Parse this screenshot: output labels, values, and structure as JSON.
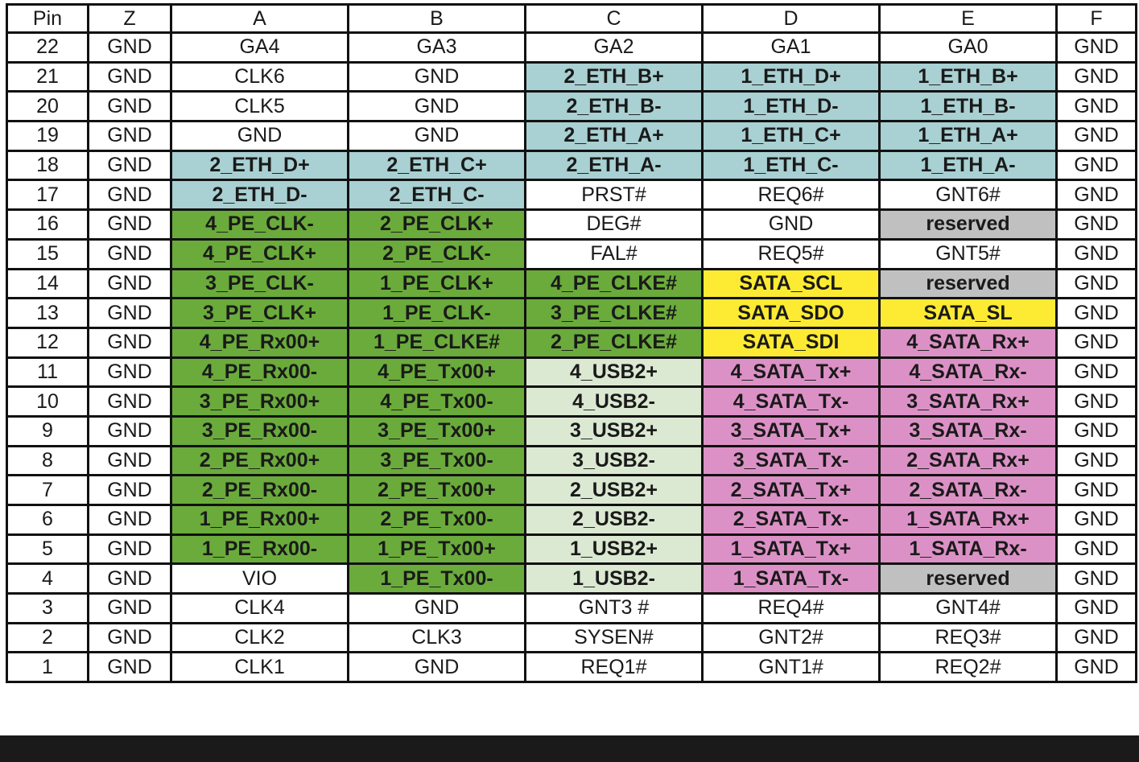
{
  "table": {
    "header": [
      "Pin",
      "Z",
      "A",
      "B",
      "C",
      "D",
      "E",
      "F"
    ],
    "colors": {
      "white": "#ffffff",
      "blue": "#a9d0d2",
      "green": "#6aab3b",
      "lightgreen": "#dbe8d2",
      "yellow": "#fdeb33",
      "pink": "#dc91c6",
      "gray": "#c0c0c0"
    },
    "rows": [
      [
        {
          "t": "22"
        },
        {
          "t": "GND"
        },
        {
          "t": "GA4"
        },
        {
          "t": "GA3"
        },
        {
          "t": "GA2"
        },
        {
          "t": "GA1"
        },
        {
          "t": "GA0"
        },
        {
          "t": "GND"
        }
      ],
      [
        {
          "t": "21"
        },
        {
          "t": "GND"
        },
        {
          "t": "CLK6"
        },
        {
          "t": "GND"
        },
        {
          "t": "2_ETH_B+",
          "c": "blue",
          "b": 1
        },
        {
          "t": "1_ETH_D+",
          "c": "blue",
          "b": 1
        },
        {
          "t": "1_ETH_B+",
          "c": "blue",
          "b": 1
        },
        {
          "t": "GND"
        }
      ],
      [
        {
          "t": "20"
        },
        {
          "t": "GND"
        },
        {
          "t": "CLK5"
        },
        {
          "t": "GND"
        },
        {
          "t": "2_ETH_B-",
          "c": "blue",
          "b": 1
        },
        {
          "t": "1_ETH_D-",
          "c": "blue",
          "b": 1
        },
        {
          "t": "1_ETH_B-",
          "c": "blue",
          "b": 1
        },
        {
          "t": "GND"
        }
      ],
      [
        {
          "t": "19"
        },
        {
          "t": "GND"
        },
        {
          "t": "GND"
        },
        {
          "t": "GND"
        },
        {
          "t": "2_ETH_A+",
          "c": "blue",
          "b": 1
        },
        {
          "t": "1_ETH_C+",
          "c": "blue",
          "b": 1
        },
        {
          "t": "1_ETH_A+",
          "c": "blue",
          "b": 1
        },
        {
          "t": "GND"
        }
      ],
      [
        {
          "t": "18"
        },
        {
          "t": "GND"
        },
        {
          "t": "2_ETH_D+",
          "c": "blue",
          "b": 1
        },
        {
          "t": "2_ETH_C+",
          "c": "blue",
          "b": 1
        },
        {
          "t": "2_ETH_A-",
          "c": "blue",
          "b": 1
        },
        {
          "t": "1_ETH_C-",
          "c": "blue",
          "b": 1
        },
        {
          "t": "1_ETH_A-",
          "c": "blue",
          "b": 1
        },
        {
          "t": "GND"
        }
      ],
      [
        {
          "t": "17"
        },
        {
          "t": "GND"
        },
        {
          "t": "2_ETH_D-",
          "c": "blue",
          "b": 1
        },
        {
          "t": "2_ETH_C-",
          "c": "blue",
          "b": 1
        },
        {
          "t": "PRST#"
        },
        {
          "t": "REQ6#"
        },
        {
          "t": "GNT6#"
        },
        {
          "t": "GND"
        }
      ],
      [
        {
          "t": "16"
        },
        {
          "t": "GND"
        },
        {
          "t": "4_PE_CLK-",
          "c": "green",
          "b": 1
        },
        {
          "t": "2_PE_CLK+",
          "c": "green",
          "b": 1
        },
        {
          "t": "DEG#"
        },
        {
          "t": "GND"
        },
        {
          "t": "reserved",
          "c": "gray",
          "b": 1
        },
        {
          "t": "GND"
        }
      ],
      [
        {
          "t": "15"
        },
        {
          "t": "GND"
        },
        {
          "t": "4_PE_CLK+",
          "c": "green",
          "b": 1
        },
        {
          "t": "2_PE_CLK-",
          "c": "green",
          "b": 1
        },
        {
          "t": "FAL#"
        },
        {
          "t": "REQ5#"
        },
        {
          "t": "GNT5#"
        },
        {
          "t": "GND"
        }
      ],
      [
        {
          "t": "14"
        },
        {
          "t": "GND"
        },
        {
          "t": "3_PE_CLK-",
          "c": "green",
          "b": 1
        },
        {
          "t": "1_PE_CLK+",
          "c": "green",
          "b": 1
        },
        {
          "t": "4_PE_CLKE#",
          "c": "green",
          "b": 1
        },
        {
          "t": "SATA_SCL",
          "c": "yellow",
          "b": 1
        },
        {
          "t": "reserved",
          "c": "gray",
          "b": 1
        },
        {
          "t": "GND"
        }
      ],
      [
        {
          "t": "13"
        },
        {
          "t": "GND"
        },
        {
          "t": "3_PE_CLK+",
          "c": "green",
          "b": 1
        },
        {
          "t": "1_PE_CLK-",
          "c": "green",
          "b": 1
        },
        {
          "t": "3_PE_CLKE#",
          "c": "green",
          "b": 1
        },
        {
          "t": "SATA_SDO",
          "c": "yellow",
          "b": 1
        },
        {
          "t": "SATA_SL",
          "c": "yellow",
          "b": 1
        },
        {
          "t": "GND"
        }
      ],
      [
        {
          "t": "12"
        },
        {
          "t": "GND"
        },
        {
          "t": "4_PE_Rx00+",
          "c": "green",
          "b": 1
        },
        {
          "t": "1_PE_CLKE#",
          "c": "green",
          "b": 1
        },
        {
          "t": "2_PE_CLKE#",
          "c": "green",
          "b": 1
        },
        {
          "t": "SATA_SDI",
          "c": "yellow",
          "b": 1
        },
        {
          "t": "4_SATA_Rx+",
          "c": "pink",
          "b": 1
        },
        {
          "t": "GND"
        }
      ],
      [
        {
          "t": "11"
        },
        {
          "t": "GND"
        },
        {
          "t": "4_PE_Rx00-",
          "c": "green",
          "b": 1
        },
        {
          "t": "4_PE_Tx00+",
          "c": "green",
          "b": 1
        },
        {
          "t": "4_USB2+",
          "c": "lightgreen",
          "b": 1
        },
        {
          "t": "4_SATA_Tx+",
          "c": "pink",
          "b": 1
        },
        {
          "t": "4_SATA_Rx-",
          "c": "pink",
          "b": 1
        },
        {
          "t": "GND"
        }
      ],
      [
        {
          "t": "10"
        },
        {
          "t": "GND"
        },
        {
          "t": "3_PE_Rx00+",
          "c": "green",
          "b": 1
        },
        {
          "t": "4_PE_Tx00-",
          "c": "green",
          "b": 1
        },
        {
          "t": "4_USB2-",
          "c": "lightgreen",
          "b": 1
        },
        {
          "t": "4_SATA_Tx-",
          "c": "pink",
          "b": 1
        },
        {
          "t": "3_SATA_Rx+",
          "c": "pink",
          "b": 1
        },
        {
          "t": "GND"
        }
      ],
      [
        {
          "t": "9"
        },
        {
          "t": "GND"
        },
        {
          "t": "3_PE_Rx00-",
          "c": "green",
          "b": 1
        },
        {
          "t": "3_PE_Tx00+",
          "c": "green",
          "b": 1
        },
        {
          "t": "3_USB2+",
          "c": "lightgreen",
          "b": 1
        },
        {
          "t": "3_SATA_Tx+",
          "c": "pink",
          "b": 1
        },
        {
          "t": "3_SATA_Rx-",
          "c": "pink",
          "b": 1
        },
        {
          "t": "GND"
        }
      ],
      [
        {
          "t": "8"
        },
        {
          "t": "GND"
        },
        {
          "t": "2_PE_Rx00+",
          "c": "green",
          "b": 1
        },
        {
          "t": "3_PE_Tx00-",
          "c": "green",
          "b": 1
        },
        {
          "t": "3_USB2-",
          "c": "lightgreen",
          "b": 1
        },
        {
          "t": "3_SATA_Tx-",
          "c": "pink",
          "b": 1
        },
        {
          "t": "2_SATA_Rx+",
          "c": "pink",
          "b": 1
        },
        {
          "t": "GND"
        }
      ],
      [
        {
          "t": "7"
        },
        {
          "t": "GND"
        },
        {
          "t": "2_PE_Rx00-",
          "c": "green",
          "b": 1
        },
        {
          "t": "2_PE_Tx00+",
          "c": "green",
          "b": 1
        },
        {
          "t": "2_USB2+",
          "c": "lightgreen",
          "b": 1
        },
        {
          "t": "2_SATA_Tx+",
          "c": "pink",
          "b": 1
        },
        {
          "t": "2_SATA_Rx-",
          "c": "pink",
          "b": 1
        },
        {
          "t": "GND"
        }
      ],
      [
        {
          "t": "6"
        },
        {
          "t": "GND"
        },
        {
          "t": "1_PE_Rx00+",
          "c": "green",
          "b": 1
        },
        {
          "t": "2_PE_Tx00-",
          "c": "green",
          "b": 1
        },
        {
          "t": "2_USB2-",
          "c": "lightgreen",
          "b": 1
        },
        {
          "t": "2_SATA_Tx-",
          "c": "pink",
          "b": 1
        },
        {
          "t": "1_SATA_Rx+",
          "c": "pink",
          "b": 1
        },
        {
          "t": "GND"
        }
      ],
      [
        {
          "t": "5"
        },
        {
          "t": "GND"
        },
        {
          "t": "1_PE_Rx00-",
          "c": "green",
          "b": 1
        },
        {
          "t": "1_PE_Tx00+",
          "c": "green",
          "b": 1
        },
        {
          "t": "1_USB2+",
          "c": "lightgreen",
          "b": 1
        },
        {
          "t": "1_SATA_Tx+",
          "c": "pink",
          "b": 1
        },
        {
          "t": "1_SATA_Rx-",
          "c": "pink",
          "b": 1
        },
        {
          "t": "GND"
        }
      ],
      [
        {
          "t": "4"
        },
        {
          "t": "GND"
        },
        {
          "t": "VIO"
        },
        {
          "t": "1_PE_Tx00-",
          "c": "green",
          "b": 1
        },
        {
          "t": "1_USB2-",
          "c": "lightgreen",
          "b": 1
        },
        {
          "t": "1_SATA_Tx-",
          "c": "pink",
          "b": 1
        },
        {
          "t": "reserved",
          "c": "gray",
          "b": 1
        },
        {
          "t": "GND"
        }
      ],
      [
        {
          "t": "3"
        },
        {
          "t": "GND"
        },
        {
          "t": "CLK4"
        },
        {
          "t": "GND"
        },
        {
          "t": "GNT3 #"
        },
        {
          "t": "REQ4#"
        },
        {
          "t": "GNT4#"
        },
        {
          "t": "GND"
        }
      ],
      [
        {
          "t": "2"
        },
        {
          "t": "GND"
        },
        {
          "t": "CLK2"
        },
        {
          "t": "CLK3"
        },
        {
          "t": "SYSEN#"
        },
        {
          "t": "GNT2#"
        },
        {
          "t": "REQ3#"
        },
        {
          "t": "GND"
        }
      ],
      [
        {
          "t": "1"
        },
        {
          "t": "GND"
        },
        {
          "t": "CLK1"
        },
        {
          "t": "GND"
        },
        {
          "t": "REQ1#"
        },
        {
          "t": "GNT1#"
        },
        {
          "t": "REQ2#"
        },
        {
          "t": "GND"
        }
      ]
    ]
  }
}
